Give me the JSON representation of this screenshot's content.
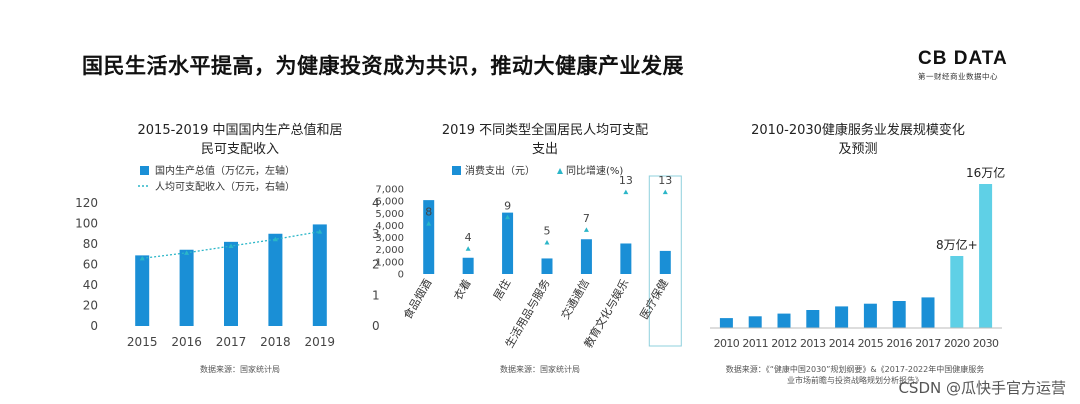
{
  "header": {
    "title": "国民生活水平提高，为健康投资成为共识，推动大健康产业发展",
    "logo_main": "CB DATA",
    "logo_sub": "第一财经商业数据中心"
  },
  "watermark": "CSDN @瓜快手官方运营",
  "colors": {
    "bar": "#1a8fd6",
    "bar_light": "#5fd0e6",
    "line": "#2bb6c8",
    "highlight_border": "#8fd0dc"
  },
  "chart_data": [
    {
      "type": "bar",
      "title": "2015-2019 中国国内生产总值和居民可支配收入",
      "title_lines": [
        "2015-2019 中国国内生产总值和居",
        "民可支配收入"
      ],
      "categories": [
        "2015",
        "2016",
        "2017",
        "2018",
        "2019"
      ],
      "series": [
        {
          "name": "国内生产总值（万亿元，左轴）",
          "type": "bar",
          "axis": "left",
          "values": [
            68.9,
            74.4,
            82.1,
            90.0,
            99.1
          ]
        },
        {
          "name": "人均可支配收入（万元，右轴）",
          "type": "line",
          "axis": "right",
          "values": [
            2.2,
            2.38,
            2.6,
            2.82,
            3.07
          ]
        }
      ],
      "ylim_left": [
        0,
        120
      ],
      "yticks_left": [
        "0",
        "20",
        "40",
        "60",
        "80",
        "100",
        "120"
      ],
      "ylim_right": [
        0,
        4
      ],
      "yticks_right": [
        "0",
        "1",
        "2",
        "3",
        "4"
      ],
      "source": "数据来源：国家统计局"
    },
    {
      "type": "bar",
      "title": "2019 不同类型全国居民人均可支配支出",
      "title_lines": [
        "2019 不同类型全国居民人均可支配",
        "支出"
      ],
      "categories": [
        "食品烟酒",
        "衣着",
        "居住",
        "生活用品与服务",
        "交通通信",
        "教育文化与娱乐",
        "医疗保健"
      ],
      "series": [
        {
          "name": "消费支出（元）",
          "type": "bar",
          "values": [
            6084,
            1338,
            5055,
            1281,
            2862,
            2513,
            1902
          ]
        },
        {
          "name": "同比增速(%)",
          "type": "scatter",
          "values": [
            8,
            4,
            9,
            5,
            7,
            13,
            13
          ]
        }
      ],
      "point_labels": [
        "8",
        "4",
        "9",
        "5",
        "7",
        "13",
        "13"
      ],
      "ylim": [
        0,
        7000
      ],
      "yticks": [
        "0",
        "1,000",
        "2,000",
        "3,000",
        "4,000",
        "5,000",
        "6,000",
        "7,000"
      ],
      "highlight": "医疗保健",
      "source": "数据来源：国家统计局"
    },
    {
      "type": "bar",
      "title": "2010-2030健康服务业发展规模变化及预测",
      "title_lines": [
        "2010-2030健康服务业发展规模变化",
        "及预测"
      ],
      "categories": [
        "2010",
        "2011",
        "2012",
        "2013",
        "2014",
        "2015",
        "2016",
        "2017",
        "2020",
        "2030"
      ],
      "values": [
        1.1,
        1.3,
        1.6,
        2.0,
        2.4,
        2.7,
        3.0,
        3.4,
        8,
        16
      ],
      "unit": "万亿",
      "annotations": [
        {
          "category": "2020",
          "text": "8万亿+"
        },
        {
          "category": "2030",
          "text": "16万亿"
        }
      ],
      "ylim": [
        0,
        16
      ],
      "forecast_categories": [
        "2020",
        "2030"
      ],
      "source_lines": [
        "数据来源：《“健康中国2030”规划纲要》&《2017-2022年中国健康服务",
        "业市场前瞻与投资战略规划分析报告》"
      ]
    }
  ]
}
